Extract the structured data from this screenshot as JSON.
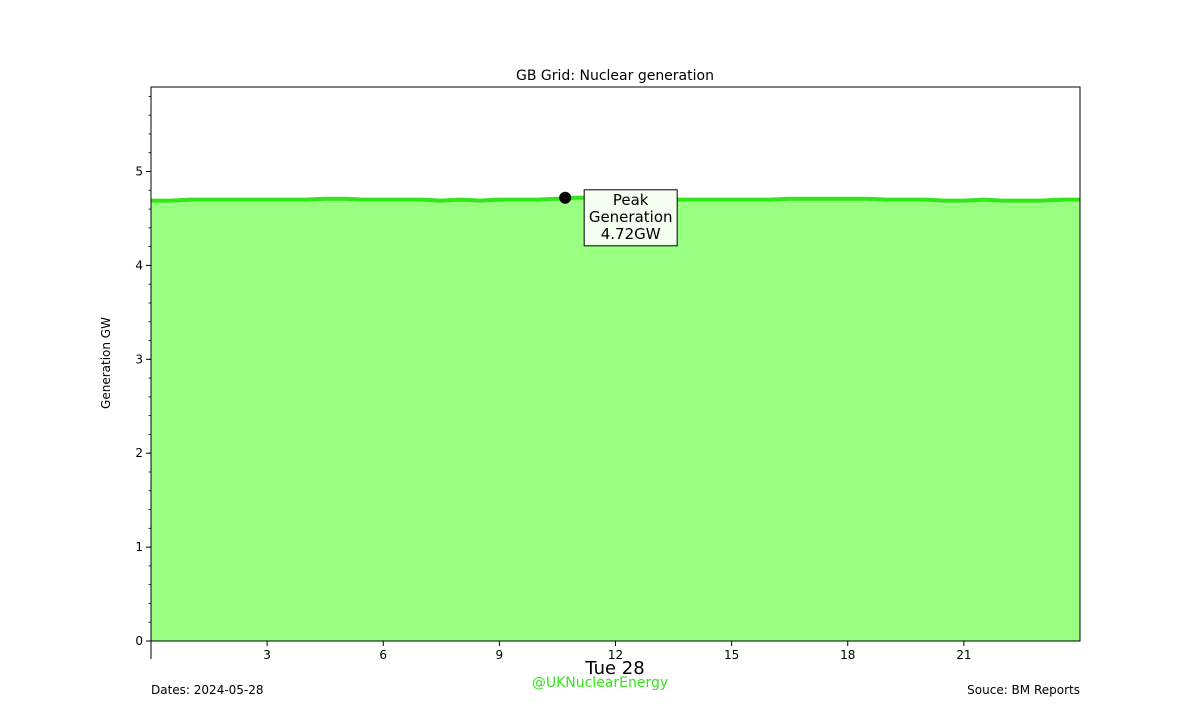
{
  "chart_data": {
    "type": "area",
    "title": "GB Grid: Nuclear generation",
    "ylabel": "Generation GW",
    "xlabel": "Tue 28",
    "xlim": [
      0,
      24
    ],
    "ylim": [
      0,
      5.9
    ],
    "x_ticks": [
      3,
      6,
      9,
      12,
      15,
      18,
      21
    ],
    "y_ticks": [
      0,
      1,
      2,
      3,
      4,
      5
    ],
    "series": [
      {
        "x": [
          0,
          0.5,
          1,
          1.5,
          2,
          2.5,
          3,
          3.5,
          4,
          4.5,
          5,
          5.5,
          6,
          6.5,
          7,
          7.5,
          8,
          8.5,
          9,
          9.5,
          10,
          10.5,
          11,
          11.5,
          12,
          12.5,
          13,
          13.5,
          14,
          14.5,
          15,
          15.5,
          16,
          16.5,
          17,
          17.5,
          18,
          18.5,
          19,
          19.5,
          20,
          20.5,
          21,
          21.5,
          22,
          22.5,
          23,
          23.5,
          24
        ],
        "values": [
          4.69,
          4.69,
          4.7,
          4.7,
          4.7,
          4.7,
          4.7,
          4.7,
          4.7,
          4.71,
          4.71,
          4.7,
          4.7,
          4.7,
          4.7,
          4.69,
          4.7,
          4.69,
          4.7,
          4.7,
          4.7,
          4.71,
          4.72,
          4.72,
          4.71,
          4.71,
          4.71,
          4.7,
          4.7,
          4.7,
          4.7,
          4.7,
          4.7,
          4.71,
          4.71,
          4.71,
          4.71,
          4.71,
          4.7,
          4.7,
          4.7,
          4.69,
          4.69,
          4.7,
          4.69,
          4.69,
          4.69,
          4.7,
          4.7
        ],
        "fill_color": "#99ff80",
        "line_color": "#33e61a"
      }
    ],
    "peak": {
      "x": 10.7,
      "value": 4.72,
      "label": "Peak\nGeneration\n4.72GW"
    },
    "grid": false
  },
  "footer": {
    "dates": "Dates: 2024-05-28",
    "source": "Souce: BM Reports",
    "handle": "@UKNuclearEnergy",
    "handle_color": "#33e61a"
  }
}
